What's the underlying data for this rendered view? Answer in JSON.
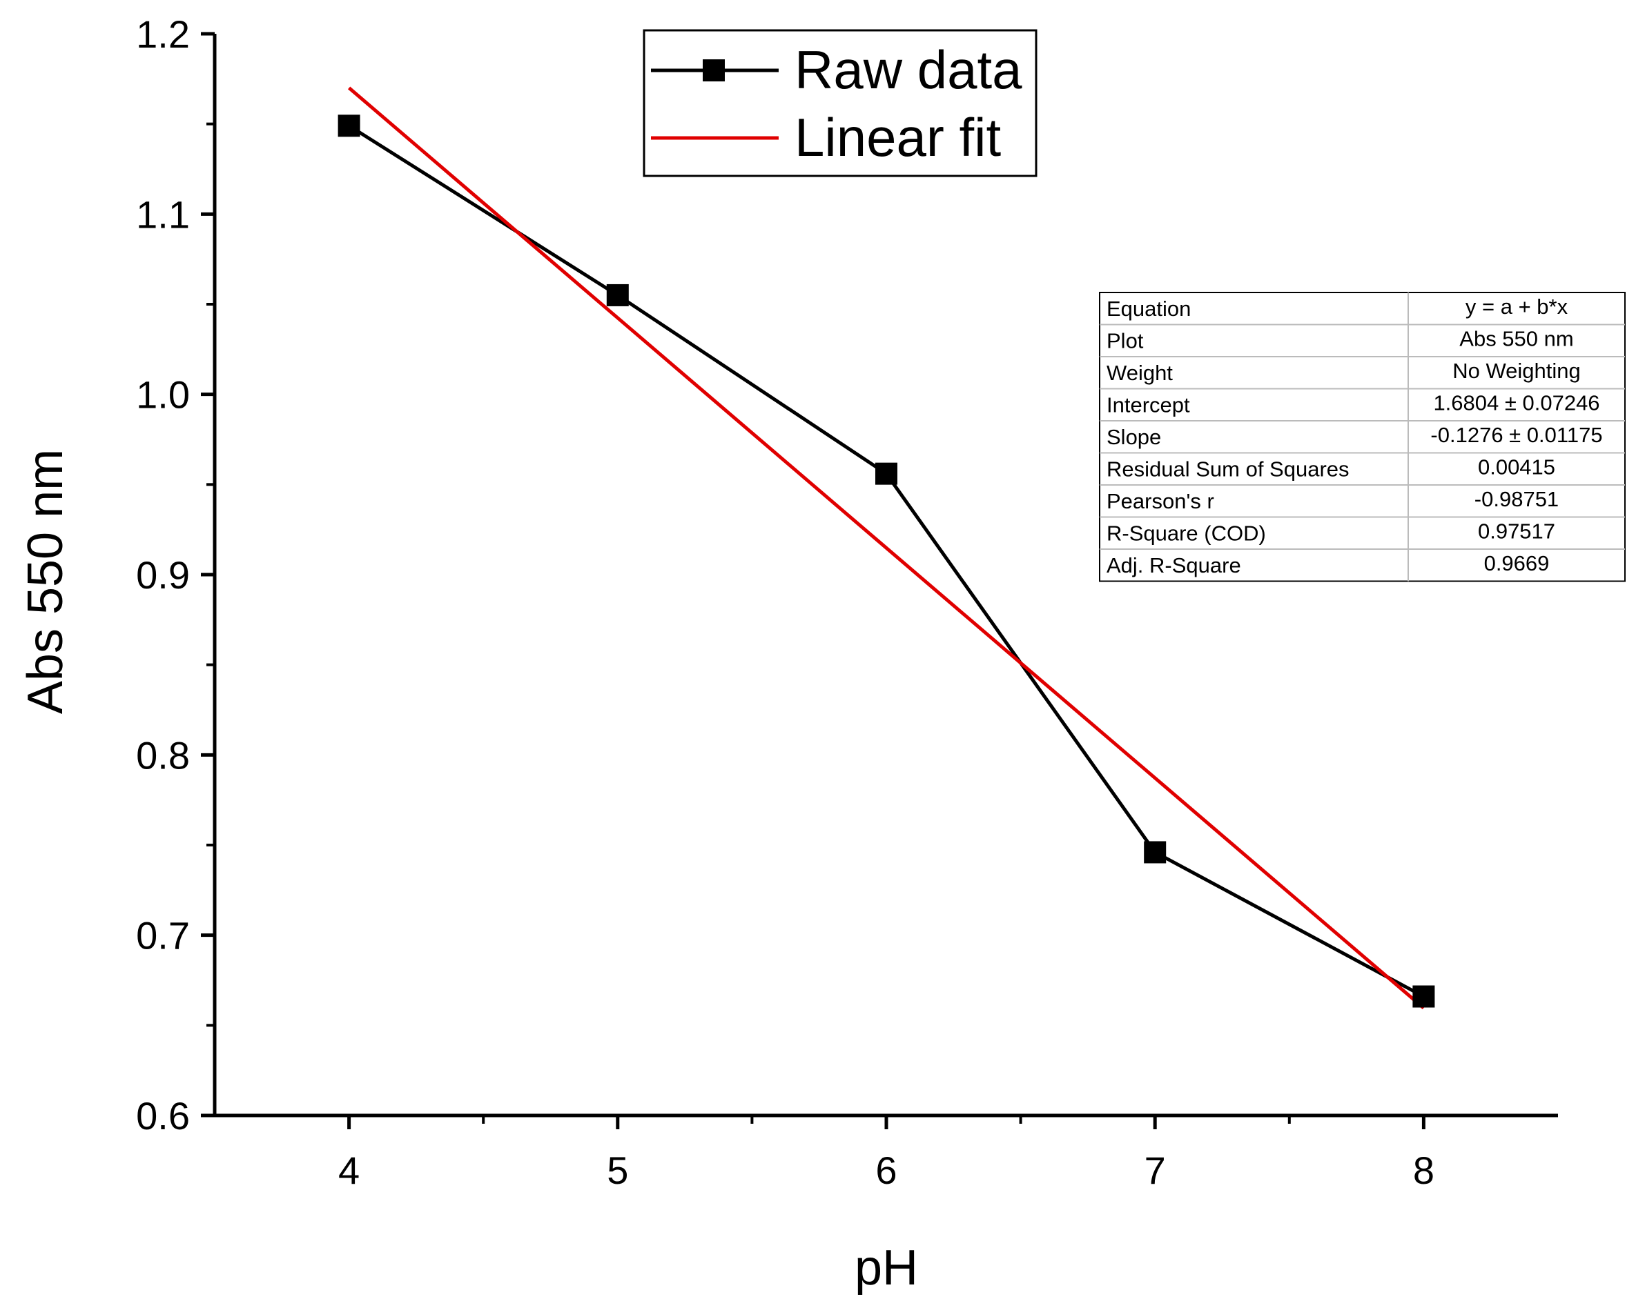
{
  "chart_data": {
    "type": "line",
    "title": "",
    "xlabel": "pH",
    "ylabel": "Abs  550 nm",
    "xlim": [
      3.5,
      8.5
    ],
    "ylim": [
      0.6,
      1.2
    ],
    "x_ticks": [
      "4",
      "5",
      "6",
      "7",
      "8"
    ],
    "y_ticks": [
      "0.6",
      "0.7",
      "0.8",
      "0.9",
      "1.0",
      "1.1",
      "1.2"
    ],
    "x_tick_values": [
      4,
      5,
      6,
      7,
      8
    ],
    "y_tick_values": [
      0.6,
      0.7,
      0.8,
      0.9,
      1.0,
      1.1,
      1.2
    ],
    "x_minor_values": [
      4.5,
      5.5,
      6.5,
      7.5
    ],
    "y_minor_values": [
      0.65,
      0.75,
      0.85,
      0.95,
      1.05,
      1.15
    ],
    "grid": false,
    "legend": {
      "position": "top-center",
      "entries": [
        "Raw data",
        "Linear fit"
      ]
    },
    "series": [
      {
        "name": "Raw data",
        "color": "#000000",
        "marker": "square",
        "x": [
          4,
          5,
          6,
          7,
          8
        ],
        "y": [
          1.149,
          1.055,
          0.956,
          0.746,
          0.666
        ]
      },
      {
        "name": "Linear fit",
        "color": "#e00000",
        "marker": "none",
        "x": [
          4,
          8
        ],
        "y": [
          1.17,
          0.6596
        ]
      }
    ],
    "fit_table": {
      "rows": [
        {
          "label": "Equation",
          "value": "y = a + b*x"
        },
        {
          "label": "Plot",
          "value": "Abs  550 nm"
        },
        {
          "label": "Weight",
          "value": "No Weighting"
        },
        {
          "label": "Intercept",
          "value": "1.6804 ± 0.07246"
        },
        {
          "label": "Slope",
          "value": "-0.1276 ± 0.01175"
        },
        {
          "label": "Residual Sum of Squares",
          "value": "0.00415"
        },
        {
          "label": "Pearson's r",
          "value": "-0.98751"
        },
        {
          "label": "R-Square (COD)",
          "value": "0.97517"
        },
        {
          "label": "Adj. R-Square",
          "value": "0.9669"
        }
      ]
    }
  }
}
